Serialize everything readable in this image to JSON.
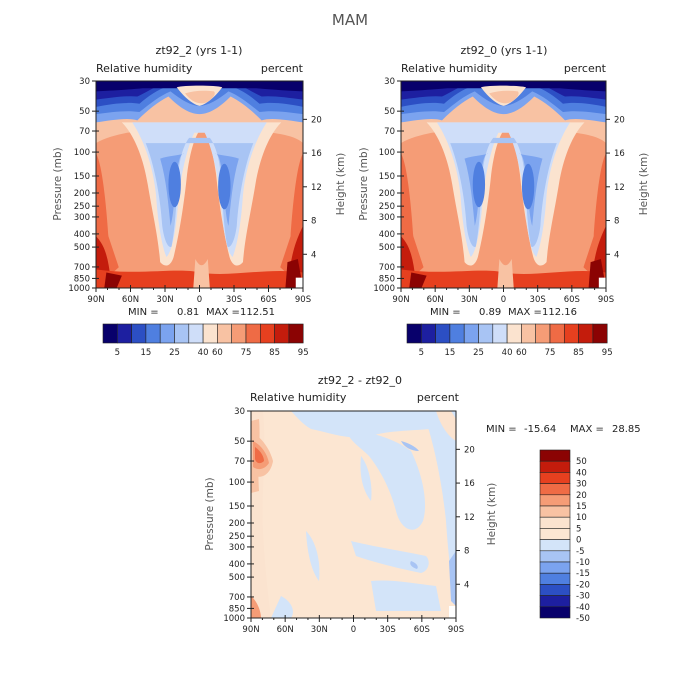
{
  "figure": {
    "title": "MAM"
  },
  "chart_data": [
    {
      "type": "heatmap",
      "title": "zt92_2 (yrs 1-1)",
      "subtitle_left": "Relative humidity",
      "subtitle_right": "percent",
      "ylabel": "Pressure (mb)",
      "ylabel_right": "Height (km)",
      "x_ticks": [
        "90N",
        "60N",
        "30N",
        "0",
        "30S",
        "60S",
        "90S"
      ],
      "y_ticks": [
        "30",
        "50",
        "70",
        "100",
        "150",
        "200",
        "250",
        "300",
        "400",
        "500",
        "700",
        "850",
        "1000"
      ],
      "y_right_ticks": [
        "20",
        "16",
        "12",
        "8",
        "4"
      ],
      "min_label": "MIN =",
      "min_value": "0.81",
      "max_label": "MAX =",
      "max_value": "112.51",
      "colorbar": {
        "labels": [
          "5",
          "15",
          "25",
          "40",
          "60",
          "75",
          "85",
          "95"
        ]
      }
    },
    {
      "type": "heatmap",
      "title": "zt92_0 (yrs 1-1)",
      "subtitle_left": "Relative humidity",
      "subtitle_right": "percent",
      "ylabel": "Pressure (mb)",
      "ylabel_right": "Height (km)",
      "x_ticks": [
        "90N",
        "60N",
        "30N",
        "0",
        "30S",
        "60S",
        "90S"
      ],
      "y_ticks": [
        "30",
        "50",
        "70",
        "100",
        "150",
        "200",
        "250",
        "300",
        "400",
        "500",
        "700",
        "850",
        "1000"
      ],
      "y_right_ticks": [
        "20",
        "16",
        "12",
        "8",
        "4"
      ],
      "min_label": "MIN =",
      "min_value": "0.89",
      "max_label": "MAX =",
      "max_value": "112.16",
      "colorbar": {
        "labels": [
          "5",
          "15",
          "25",
          "40",
          "60",
          "75",
          "85",
          "95"
        ]
      }
    },
    {
      "type": "heatmap",
      "title": "zt92_2 - zt92_0",
      "subtitle_left": "Relative humidity",
      "subtitle_right": "percent",
      "ylabel": "Pressure (mb)",
      "ylabel_right": "Height (km)",
      "x_ticks": [
        "90N",
        "60N",
        "30N",
        "0",
        "30S",
        "60S",
        "90S"
      ],
      "y_ticks": [
        "30",
        "50",
        "70",
        "100",
        "150",
        "200",
        "250",
        "300",
        "400",
        "500",
        "700",
        "850",
        "1000"
      ],
      "y_right_ticks": [
        "20",
        "16",
        "12",
        "8",
        "4"
      ],
      "min_label": "MIN =",
      "min_value": "-15.64",
      "max_label": "MAX =",
      "max_value": "28.85",
      "colorbar": {
        "labels": [
          "50",
          "40",
          "30",
          "20",
          "15",
          "10",
          "5",
          "0",
          "-5",
          "-10",
          "-15",
          "-20",
          "-30",
          "-40",
          "-50"
        ]
      }
    }
  ],
  "palettes": {
    "rh": [
      "#08006b",
      "#1d1fa0",
      "#2c4fc4",
      "#4f7fe0",
      "#7ba3ef",
      "#a8c4f4",
      "#cfdef9",
      "#fbe3cf",
      "#f8c2a3",
      "#f59c76",
      "#ef6b45",
      "#e6401f",
      "#c41c0c",
      "#8b0303"
    ],
    "diff": [
      "#8b0303",
      "#c41c0c",
      "#e6401f",
      "#ef6b45",
      "#f59c76",
      "#f8c2a3",
      "#fbe3cf",
      "#fce6d2",
      "#d3e4f9",
      "#a8c4f4",
      "#7ba3ef",
      "#4f7fe0",
      "#2c4fc4",
      "#1d1fa0",
      "#08006b"
    ]
  }
}
